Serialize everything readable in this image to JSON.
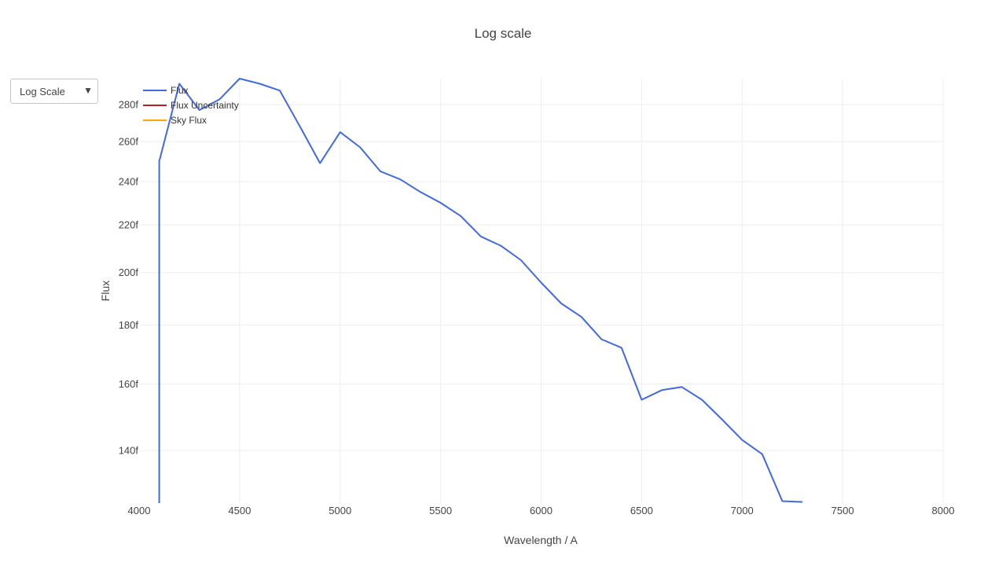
{
  "dropdown": {
    "selected": "Log Scale"
  },
  "chart_data": {
    "type": "line",
    "title": "Log scale",
    "xlabel": "Wavelength / A",
    "ylabel": "Flux",
    "xlim": [
      4000,
      8000
    ],
    "ylim": [
      1.26e-13,
      2.95e-13
    ],
    "y_scale": "log",
    "grid": true,
    "legend_position": "top-left",
    "x_ticks": [
      4000,
      4500,
      5000,
      5500,
      6000,
      6500,
      7000,
      7500,
      8000
    ],
    "x_tick_labels": [
      "4000",
      "4500",
      "5000",
      "5500",
      "6000",
      "6500",
      "7000",
      "7500",
      "8000"
    ],
    "y_ticks": [
      1.4e-13,
      1.6e-13,
      1.8e-13,
      2e-13,
      2.2e-13,
      2.4e-13,
      2.6e-13,
      2.8e-13
    ],
    "y_tick_labels": [
      "140f",
      "160f",
      "180f",
      "200f",
      "220f",
      "240f",
      "260f",
      "280f"
    ],
    "series": [
      {
        "name": "Flux",
        "color": "#4169e1",
        "x": [
          4100,
          4100,
          4200,
          4300,
          4400,
          4500,
          4600,
          4700,
          4800,
          4900,
          5000,
          5100,
          5200,
          5300,
          5400,
          5500,
          5600,
          5700,
          5800,
          5900,
          6000,
          6100,
          6200,
          6300,
          6400,
          6500,
          6600,
          6700,
          6800,
          6900,
          7000,
          7100,
          7200,
          7300
        ],
        "y": [
          1.26e-13,
          2.5e-13,
          2.92e-13,
          2.77e-13,
          2.83e-13,
          2.95e-13,
          2.92e-13,
          2.88e-13,
          2.68e-13,
          2.49e-13,
          2.65e-13,
          2.57e-13,
          2.45e-13,
          2.41e-13,
          2.35e-13,
          2.3e-13,
          2.24e-13,
          2.15e-13,
          2.11e-13,
          2.05e-13,
          1.96e-13,
          1.88e-13,
          1.83e-13,
          1.75e-13,
          1.72e-13,
          1.55e-13,
          1.58e-13,
          1.59e-13,
          1.55e-13,
          1.49e-13,
          1.43e-13,
          1.39e-13,
          1.265e-13,
          1.263e-13
        ]
      },
      {
        "name": "Flux Uncertainty",
        "color": "#b22222",
        "x": [],
        "y": []
      },
      {
        "name": "Sky Flux",
        "color": "#ffa500",
        "x": [],
        "y": []
      }
    ]
  }
}
